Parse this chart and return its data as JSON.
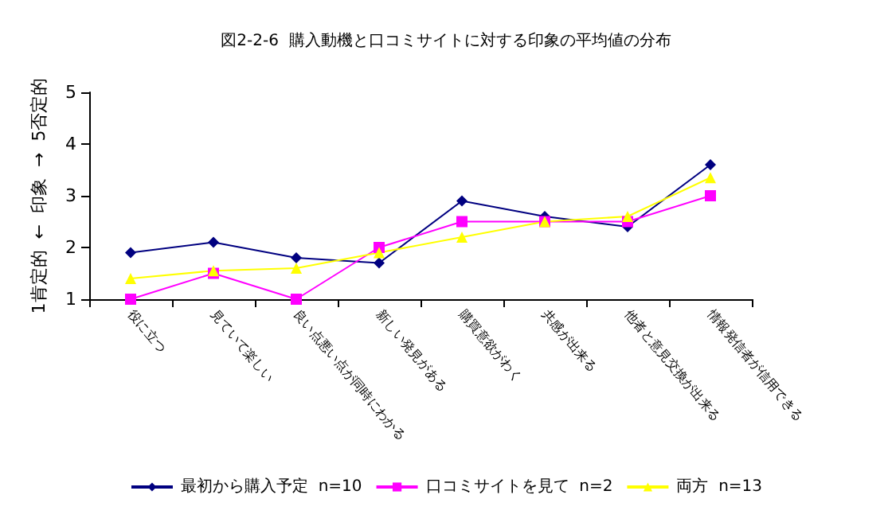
{
  "chart_data": {
    "type": "line",
    "title": "図2-2-6  購入動機と口コミサイトに対する印象の平均値の分布",
    "ylabel": "1肯定的  ←  印象  →  5否定的",
    "categories": [
      "役に立つ",
      "見ていて楽しい",
      "良い点悪い点が同時にわかる",
      "新しい発見がある",
      "購買意欲がわく",
      "共感が出来る",
      "他者と意見交換が出来る",
      "情報発信者が信用できる"
    ],
    "series": [
      {
        "name": "最初から購入予定  n=10",
        "color": "#000080",
        "marker": "diamond",
        "values": [
          1.9,
          2.1,
          1.8,
          1.7,
          2.9,
          2.6,
          2.4,
          3.6
        ]
      },
      {
        "name": "口コミサイトを見て  n=2",
        "color": "#ff00ff",
        "marker": "square",
        "values": [
          1.0,
          1.5,
          1.0,
          2.0,
          2.5,
          2.5,
          2.5,
          3.0
        ]
      },
      {
        "name": "両方  n=13",
        "color": "#ffff00",
        "marker": "triangle",
        "values": [
          1.4,
          1.55,
          1.6,
          1.9,
          2.2,
          2.5,
          2.6,
          3.35
        ]
      }
    ],
    "ylim": [
      1,
      5
    ],
    "yticks": [
      1,
      2,
      3,
      4,
      5
    ],
    "grid": false,
    "legend": "bottom"
  }
}
